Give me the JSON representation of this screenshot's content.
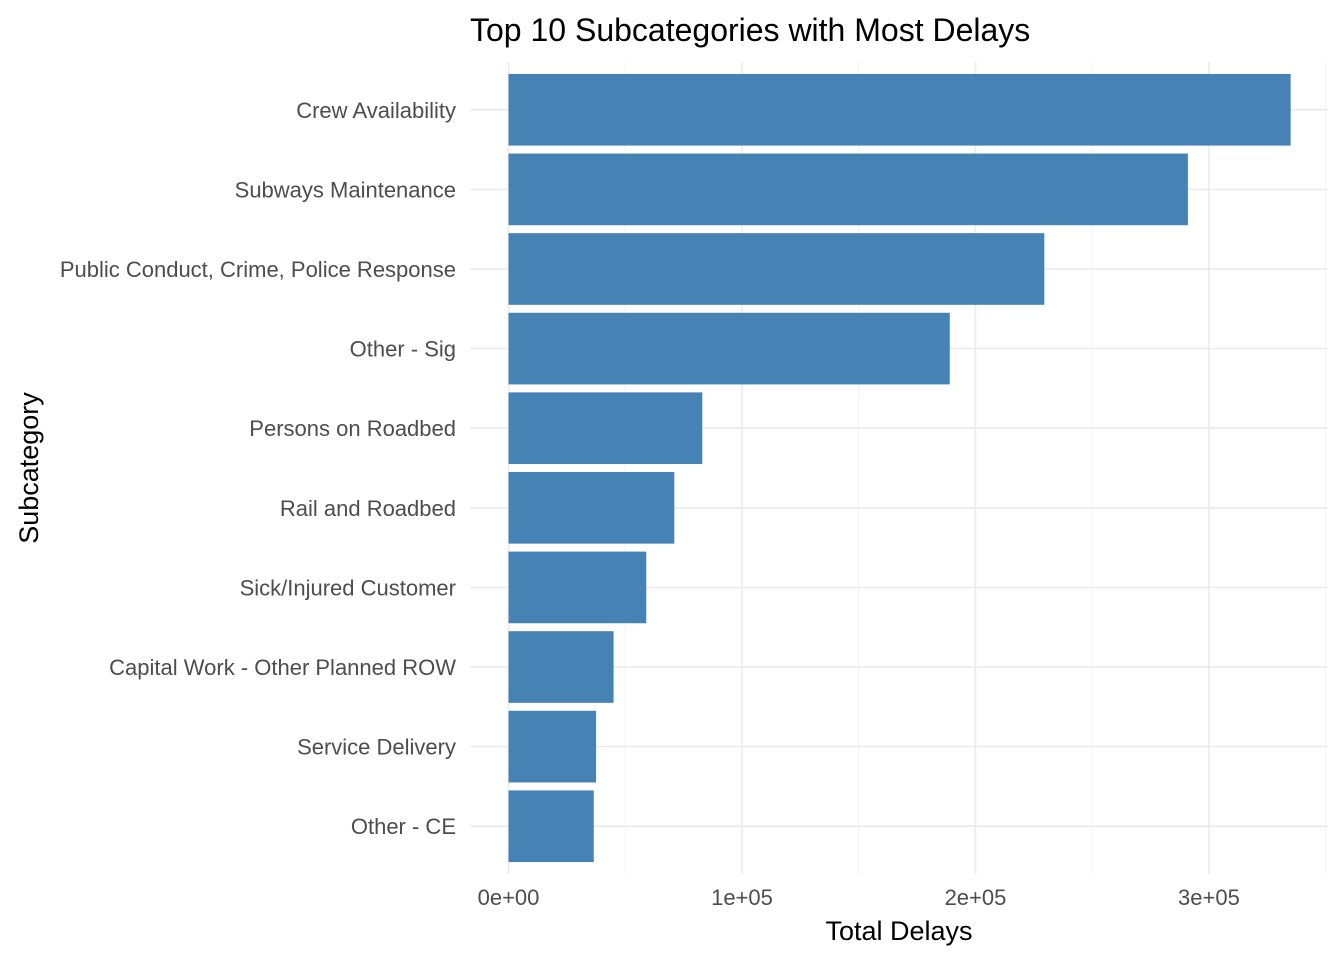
{
  "chart_data": {
    "type": "bar",
    "orientation": "horizontal",
    "title": "Top 10 Subcategories with Most Delays",
    "xlabel": "Total Delays",
    "ylabel": "Subcategory",
    "categories": [
      "Crew Availability",
      "Subways Maintenance",
      "Public Conduct, Crime, Police Response",
      "Other - Sig",
      "Persons on Roadbed",
      "Rail and Roadbed",
      "Sick/Injured Customer",
      "Capital Work - Other Planned ROW",
      "Service Delivery",
      "Other - CE"
    ],
    "values": [
      335000,
      291000,
      229500,
      189000,
      83000,
      71000,
      59000,
      45000,
      37500,
      36500
    ],
    "xlim": [
      -16500,
      351000
    ],
    "x_ticks": [
      0,
      100000,
      200000,
      300000
    ],
    "x_tick_labels": [
      "0e+00",
      "1e+05",
      "2e+05",
      "3e+05"
    ],
    "x_minor_ticks": [
      50000,
      150000,
      250000,
      350000
    ],
    "bar_color": "#4682b4",
    "grid": true,
    "legend": "none"
  }
}
